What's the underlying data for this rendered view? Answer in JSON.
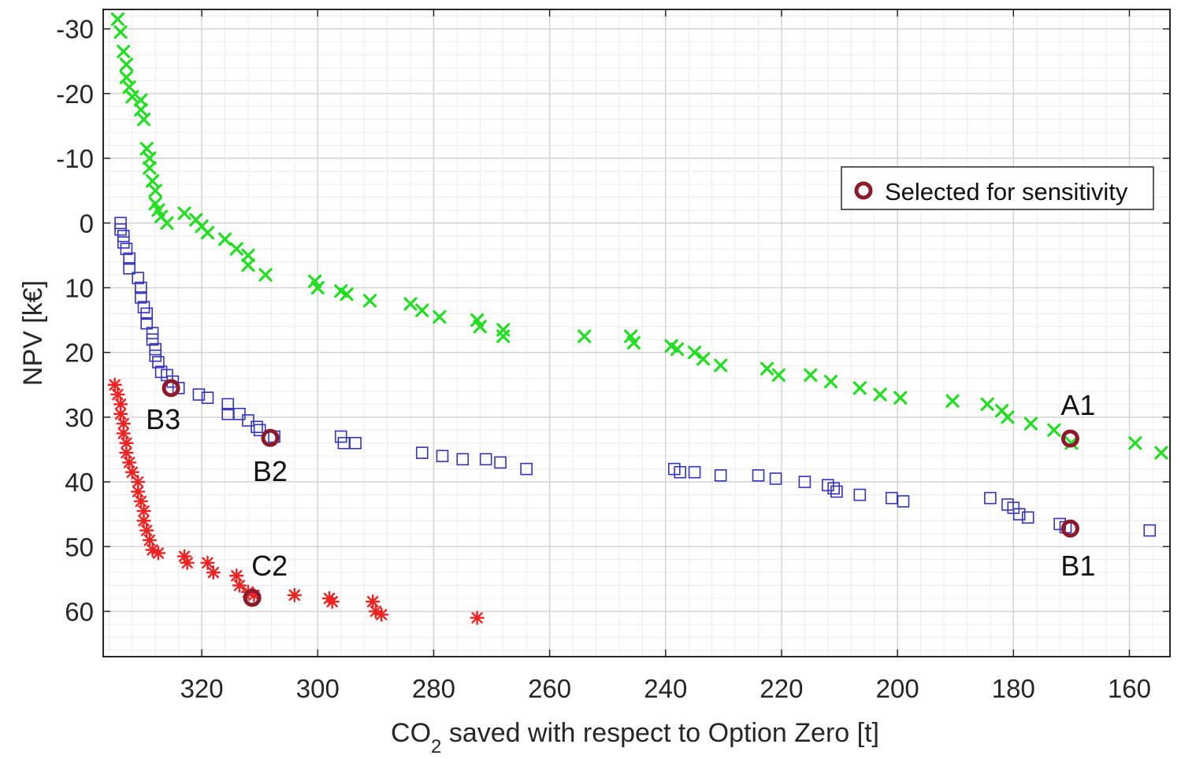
{
  "chart_data": {
    "type": "scatter",
    "xlabel": {
      "pre": "CO",
      "sub": "2",
      "post": " saved  with respect to Option Zero [t]"
    },
    "ylabel": "NPV [k€]",
    "xlim": [
      337,
      153
    ],
    "ylim": [
      -33,
      67
    ],
    "x_reversed": true,
    "y_reversed": true,
    "xticks": [
      320,
      300,
      280,
      260,
      240,
      220,
      200,
      180,
      160
    ],
    "yticks": [
      -30,
      -20,
      -10,
      0,
      10,
      20,
      30,
      40,
      50,
      60
    ],
    "grid": "major and minor",
    "legend": {
      "placement": "top-right",
      "entries": [
        {
          "label": "Selected for sensitivity",
          "marker": "circle",
          "color": "#8b1a2b"
        }
      ]
    },
    "colors": {
      "green": "#22dd22",
      "blue": "#3333bb",
      "red": "#ee2222",
      "selected": "#8b1a2b"
    },
    "series": [
      {
        "marker": "x",
        "color": "#22dd22",
        "points": [
          [
            334.5,
            -31.5
          ],
          [
            334,
            -29.5
          ],
          [
            333.5,
            -26.5
          ],
          [
            333,
            -24.5
          ],
          [
            333,
            -22.5
          ],
          [
            332.5,
            -21
          ],
          [
            332,
            -19.5
          ],
          [
            330.5,
            -19
          ],
          [
            330.5,
            -17.5
          ],
          [
            330,
            -16
          ],
          [
            329.5,
            -11.5
          ],
          [
            329,
            -10
          ],
          [
            329,
            -8.5
          ],
          [
            328.5,
            -6.5
          ],
          [
            328,
            -5
          ],
          [
            328,
            -3
          ],
          [
            327.5,
            -2
          ],
          [
            327,
            -1
          ],
          [
            326,
            0
          ],
          [
            323,
            -1.5
          ],
          [
            321,
            -0.5
          ],
          [
            320,
            0.5
          ],
          [
            319,
            1.5
          ],
          [
            316,
            2.5
          ],
          [
            314,
            4
          ],
          [
            312,
            5
          ],
          [
            312,
            6.5
          ],
          [
            309,
            8
          ],
          [
            300.5,
            9
          ],
          [
            300,
            10
          ],
          [
            296,
            10.5
          ],
          [
            295,
            11
          ],
          [
            291,
            12
          ],
          [
            284,
            12.5
          ],
          [
            282,
            13.5
          ],
          [
            279,
            14.5
          ],
          [
            272.5,
            15
          ],
          [
            272,
            16
          ],
          [
            268,
            16.5
          ],
          [
            268,
            17.5
          ],
          [
            254,
            17.5
          ],
          [
            246,
            17.5
          ],
          [
            245.5,
            18.5
          ],
          [
            239,
            19
          ],
          [
            238,
            19.5
          ],
          [
            235,
            20
          ],
          [
            233.5,
            21
          ],
          [
            230.5,
            22
          ],
          [
            222.5,
            22.5
          ],
          [
            220.5,
            23.5
          ],
          [
            215,
            23.5
          ],
          [
            211.5,
            24.5
          ],
          [
            206.5,
            25.5
          ],
          [
            203,
            26.5
          ],
          [
            199.5,
            27
          ],
          [
            190.5,
            27.5
          ],
          [
            184.5,
            28
          ],
          [
            182,
            29
          ],
          [
            181,
            30
          ],
          [
            177,
            31
          ],
          [
            173,
            32
          ],
          [
            170,
            34
          ],
          [
            159,
            34
          ],
          [
            154.5,
            35.5
          ]
        ]
      },
      {
        "marker": "square",
        "color": "#3333bb",
        "points": [
          [
            334,
            0
          ],
          [
            334,
            1
          ],
          [
            333.5,
            2
          ],
          [
            333.5,
            3
          ],
          [
            333,
            4
          ],
          [
            332.5,
            5.5
          ],
          [
            332.5,
            7
          ],
          [
            331,
            8.5
          ],
          [
            330.5,
            10
          ],
          [
            330.5,
            11.5
          ],
          [
            330,
            13
          ],
          [
            329.5,
            14
          ],
          [
            329.5,
            15.5
          ],
          [
            328.5,
            17
          ],
          [
            328.5,
            18
          ],
          [
            328,
            19.5
          ],
          [
            328,
            20.5
          ],
          [
            327.5,
            21.5
          ],
          [
            327,
            23
          ],
          [
            326,
            23.5
          ],
          [
            325,
            24.5
          ],
          [
            324,
            25.5
          ],
          [
            320.5,
            26.5
          ],
          [
            319,
            27
          ],
          [
            315.5,
            28
          ],
          [
            315.5,
            29.5
          ],
          [
            313.5,
            29.5
          ],
          [
            312,
            30.5
          ],
          [
            310.5,
            31.5
          ],
          [
            310,
            32
          ],
          [
            307.5,
            33
          ],
          [
            296,
            33
          ],
          [
            295.5,
            34
          ],
          [
            293.5,
            34
          ],
          [
            282,
            35.5
          ],
          [
            278.5,
            36
          ],
          [
            275,
            36.5
          ],
          [
            271,
            36.5
          ],
          [
            268.5,
            37
          ],
          [
            264,
            38
          ],
          [
            238.5,
            38
          ],
          [
            237.5,
            38.5
          ],
          [
            235,
            38.5
          ],
          [
            230.5,
            39
          ],
          [
            224,
            39
          ],
          [
            221,
            39.5
          ],
          [
            216,
            40
          ],
          [
            212,
            40.5
          ],
          [
            211,
            41
          ],
          [
            210.5,
            41.5
          ],
          [
            206.5,
            42
          ],
          [
            201,
            42.5
          ],
          [
            199,
            43
          ],
          [
            184,
            42.5
          ],
          [
            181,
            43.5
          ],
          [
            180,
            44
          ],
          [
            179,
            45
          ],
          [
            177.5,
            45.5
          ],
          [
            172,
            46.5
          ],
          [
            171,
            47
          ],
          [
            156.5,
            47.5
          ]
        ]
      },
      {
        "marker": "star",
        "color": "#ee2222",
        "points": [
          [
            335,
            25
          ],
          [
            334.5,
            26.5
          ],
          [
            334,
            28
          ],
          [
            334,
            29.5
          ],
          [
            333.5,
            31
          ],
          [
            333.5,
            32.5
          ],
          [
            333,
            34
          ],
          [
            333,
            35.5
          ],
          [
            332.5,
            37
          ],
          [
            332,
            38.5
          ],
          [
            331,
            40
          ],
          [
            331,
            41.5
          ],
          [
            330.5,
            43
          ],
          [
            330,
            44.5
          ],
          [
            330,
            46
          ],
          [
            329.5,
            47.5
          ],
          [
            329,
            49
          ],
          [
            328.5,
            50.5
          ],
          [
            327.5,
            51
          ],
          [
            323,
            51.5
          ],
          [
            322.5,
            52.5
          ],
          [
            319,
            52.5
          ],
          [
            318,
            54
          ],
          [
            314,
            54.5
          ],
          [
            313.5,
            56
          ],
          [
            312,
            57
          ],
          [
            311,
            57.5
          ],
          [
            304,
            57.5
          ],
          [
            298,
            58
          ],
          [
            297.5,
            58.5
          ],
          [
            290.5,
            58.5
          ],
          [
            290,
            60
          ],
          [
            289,
            60.5
          ],
          [
            272.5,
            61
          ]
        ]
      }
    ],
    "selected_points": [
      {
        "label": "A1",
        "x": 170.2,
        "y": 33.3
      },
      {
        "label": "B1",
        "x": 170.2,
        "y": 47.2
      },
      {
        "label": "B2",
        "x": 308.2,
        "y": 33.2
      },
      {
        "label": "B3",
        "x": 325.3,
        "y": 25.5
      },
      {
        "label": "C2",
        "x": 311.3,
        "y": 57.9
      }
    ]
  }
}
